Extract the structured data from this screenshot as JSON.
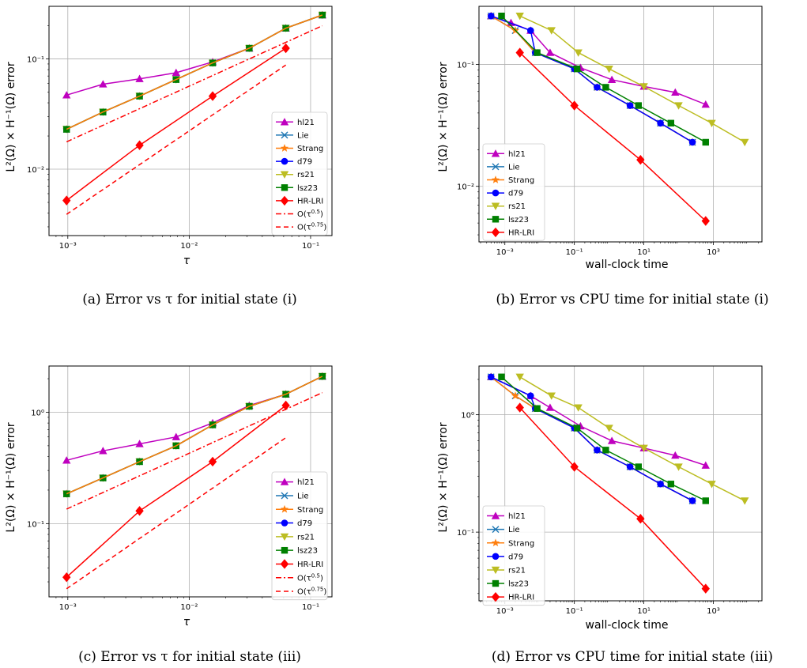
{
  "figures": [
    {
      "caption": "(a) Error vs τ for initial state (i)",
      "xlabel": "τ",
      "ylabel": "L²(Ω) × H⁻¹(Ω) error"
    },
    {
      "caption": "(b) Error vs CPU time for initial state (i)",
      "xlabel": "wall-clock time",
      "ylabel": "L²(Ω) × H⁻¹(Ω) error"
    },
    {
      "caption": "(c) Error vs τ for initial state (iii)",
      "xlabel": "τ",
      "ylabel": "L²(Ω) × H⁻¹(Ω) error"
    },
    {
      "caption": "(d) Error vs CPU time for initial state (iii)",
      "xlabel": "wall-clock time",
      "ylabel": "L²(Ω) × H⁻¹(Ω) error"
    }
  ],
  "chart_data": [
    {
      "type": "line",
      "xscale": "log",
      "yscale": "log",
      "xlim": [
        0.0007,
        0.15
      ],
      "ylim": [
        0.0025,
        0.3
      ],
      "xticks": [
        {
          "v": 0.001,
          "l": "10⁻³"
        },
        {
          "v": 0.01,
          "l": "10⁻²"
        },
        {
          "v": 0.1,
          "l": "10⁻¹"
        }
      ],
      "yticks": [
        {
          "v": 0.01,
          "l": "10⁻²"
        },
        {
          "v": 0.1,
          "l": "10⁻¹"
        }
      ],
      "grid": true,
      "legend": "lower-right",
      "series": [
        {
          "name": "hl21",
          "color": "#bf00bf",
          "marker": "triangle-up",
          "dash": "solid",
          "x": [
            0.000977,
            0.00195,
            0.0039,
            0.0078,
            0.0156,
            0.03125,
            0.0625,
            0.125
          ],
          "y": [
            0.047,
            0.059,
            0.066,
            0.075,
            0.094,
            0.125,
            0.19,
            0.25
          ]
        },
        {
          "name": "Lie",
          "color": "#1f77b4",
          "marker": "x",
          "dash": "solid",
          "x": [
            0.000977,
            0.00195,
            0.0039,
            0.0078,
            0.0156,
            0.03125,
            0.0625,
            0.125
          ],
          "y": [
            0.023,
            0.033,
            0.046,
            0.065,
            0.092,
            0.125,
            0.19,
            0.25
          ]
        },
        {
          "name": "Strang",
          "color": "#ff7f0e",
          "marker": "star",
          "dash": "solid",
          "x": [
            0.000977,
            0.00195,
            0.0039,
            0.0078,
            0.0156,
            0.03125,
            0.0625,
            0.125
          ],
          "y": [
            0.023,
            0.033,
            0.046,
            0.065,
            0.092,
            0.125,
            0.19,
            0.25
          ]
        },
        {
          "name": "d79",
          "color": "#0000ff",
          "marker": "circle",
          "dash": "solid",
          "x": [
            0.000977,
            0.00195,
            0.0039,
            0.0078,
            0.0156,
            0.03125,
            0.0625,
            0.125
          ],
          "y": [
            0.023,
            0.033,
            0.046,
            0.065,
            0.092,
            0.125,
            0.19,
            0.25
          ]
        },
        {
          "name": "rs21",
          "color": "#bcbd22",
          "marker": "triangle-down",
          "dash": "solid",
          "x": [
            0.000977,
            0.00195,
            0.0039,
            0.0078,
            0.0156,
            0.03125,
            0.0625,
            0.125
          ],
          "y": [
            0.023,
            0.033,
            0.046,
            0.065,
            0.092,
            0.125,
            0.19,
            0.25
          ]
        },
        {
          "name": "lsz23",
          "color": "#008000",
          "marker": "square",
          "dash": "solid",
          "x": [
            0.000977,
            0.00195,
            0.0039,
            0.0078,
            0.0156,
            0.03125,
            0.0625,
            0.125
          ],
          "y": [
            0.023,
            0.033,
            0.046,
            0.065,
            0.092,
            0.125,
            0.19,
            0.25
          ]
        },
        {
          "name": "Strang",
          "color": "#ff7f0e",
          "marker": "none",
          "dash": "solid",
          "legend": false,
          "x": [
            0.000977,
            0.00195,
            0.0039,
            0.0078,
            0.0156,
            0.03125,
            0.0625,
            0.125
          ],
          "y": [
            0.023,
            0.033,
            0.046,
            0.065,
            0.092,
            0.125,
            0.19,
            0.25
          ]
        },
        {
          "name": "HR-LRI",
          "color": "#ff0000",
          "marker": "diamond",
          "dash": "solid",
          "x": [
            0.000977,
            0.0039,
            0.0156,
            0.0625
          ],
          "y": [
            0.0052,
            0.0165,
            0.046,
            0.125
          ]
        },
        {
          "name": "O(τ^0.5)",
          "color": "#ff0000",
          "marker": "none",
          "dash": "dashdot",
          "x": [
            0.000977,
            0.125
          ],
          "y": [
            0.0177,
            0.2
          ]
        },
        {
          "name": "O(τ^0.75)",
          "color": "#ff0000",
          "marker": "none",
          "dash": "dashed",
          "x": [
            0.000977,
            0.0625
          ],
          "y": [
            0.0039,
            0.088
          ]
        }
      ]
    },
    {
      "type": "line",
      "xscale": "log",
      "yscale": "log",
      "xlim": [
        0.00018,
        25000
      ],
      "ylim": [
        0.0035,
        0.3
      ],
      "xticks": [
        {
          "v": 0.001,
          "l": "10⁻³"
        },
        {
          "v": 0.1,
          "l": "10⁻¹"
        },
        {
          "v": 10,
          "l": "10¹"
        },
        {
          "v": 1000,
          "l": "10³"
        }
      ],
      "yticks": [
        {
          "v": 0.01,
          "l": "10⁻²"
        },
        {
          "v": 0.1,
          "l": "10⁻¹"
        }
      ],
      "grid": true,
      "legend": "lower-left",
      "series": [
        {
          "name": "hl21",
          "color": "#bf00bf",
          "marker": "triangle-up",
          "dash": "solid",
          "x": [
            0.0004,
            0.0015,
            0.0055,
            0.02,
            0.15,
            1.2,
            10,
            80,
            600
          ],
          "y": [
            0.25,
            0.22,
            0.19,
            0.125,
            0.094,
            0.075,
            0.066,
            0.059,
            0.047
          ]
        },
        {
          "name": "Lie",
          "color": "#1f77b4",
          "marker": "x",
          "dash": "solid",
          "x": [
            0.0004,
            0.002,
            0.0075,
            0.1,
            0.45,
            4,
            30,
            250
          ],
          "y": [
            0.25,
            0.19,
            0.125,
            0.092,
            0.065,
            0.046,
            0.033,
            0.023
          ]
        },
        {
          "name": "Strang",
          "color": "#ff7f0e",
          "marker": "star",
          "dash": "solid",
          "x": [
            0.0004,
            0.002,
            0.0075,
            0.1,
            0.45,
            4,
            30,
            250
          ],
          "y": [
            0.25,
            0.19,
            0.125,
            0.092,
            0.065,
            0.046,
            0.033,
            0.023
          ]
        },
        {
          "name": "d79",
          "color": "#0000ff",
          "marker": "circle",
          "dash": "solid",
          "x": [
            0.0004,
            0.0055,
            0.0075,
            0.1,
            0.45,
            4,
            30,
            250
          ],
          "y": [
            0.25,
            0.19,
            0.125,
            0.092,
            0.065,
            0.046,
            0.033,
            0.023
          ]
        },
        {
          "name": "rs21",
          "color": "#bcbd22",
          "marker": "triangle-down",
          "dash": "solid",
          "x": [
            0.0027,
            0.022,
            0.13,
            1.0,
            10,
            100,
            900,
            8000
          ],
          "y": [
            0.25,
            0.19,
            0.125,
            0.092,
            0.066,
            0.046,
            0.033,
            0.023
          ]
        },
        {
          "name": "lsz23",
          "color": "#008000",
          "marker": "square",
          "dash": "solid",
          "x": [
            0.0008,
            0.0085,
            0.12,
            0.8,
            7,
            60,
            600
          ],
          "y": [
            0.25,
            0.125,
            0.092,
            0.065,
            0.046,
            0.033,
            0.023
          ]
        },
        {
          "name": "HR-LRI",
          "color": "#ff0000",
          "marker": "diamond",
          "dash": "solid",
          "x": [
            0.0027,
            0.1,
            8,
            600
          ],
          "y": [
            0.125,
            0.046,
            0.0165,
            0.0052
          ]
        }
      ]
    },
    {
      "type": "line",
      "xscale": "log",
      "yscale": "log",
      "xlim": [
        0.0007,
        0.15
      ],
      "ylim": [
        0.022,
        2.6
      ],
      "xticks": [
        {
          "v": 0.001,
          "l": "10⁻³"
        },
        {
          "v": 0.01,
          "l": "10⁻²"
        },
        {
          "v": 0.1,
          "l": "10⁻¹"
        }
      ],
      "yticks": [
        {
          "v": 0.1,
          "l": "10⁻¹"
        },
        {
          "v": 1,
          "l": "10⁰"
        }
      ],
      "grid": true,
      "legend": "lower-right",
      "series": [
        {
          "name": "hl21",
          "color": "#bf00bf",
          "marker": "triangle-up",
          "dash": "solid",
          "x": [
            0.000977,
            0.00195,
            0.0039,
            0.0078,
            0.0156,
            0.03125,
            0.0625,
            0.125
          ],
          "y": [
            0.37,
            0.45,
            0.52,
            0.6,
            0.8,
            1.15,
            1.45,
            2.1
          ]
        },
        {
          "name": "Lie",
          "color": "#1f77b4",
          "marker": "x",
          "dash": "solid",
          "x": [
            0.000977,
            0.00195,
            0.0039,
            0.0078,
            0.0156,
            0.03125,
            0.0625,
            0.125
          ],
          "y": [
            0.185,
            0.257,
            0.36,
            0.5,
            0.77,
            1.13,
            1.45,
            2.1
          ]
        },
        {
          "name": "Strang",
          "color": "#ff7f0e",
          "marker": "star",
          "dash": "solid",
          "x": [
            0.000977,
            0.00195,
            0.0039,
            0.0078,
            0.0156,
            0.03125,
            0.0625,
            0.125
          ],
          "y": [
            0.185,
            0.257,
            0.36,
            0.5,
            0.77,
            1.13,
            1.45,
            2.1
          ]
        },
        {
          "name": "d79",
          "color": "#0000ff",
          "marker": "circle",
          "dash": "solid",
          "x": [
            0.000977,
            0.00195,
            0.0039,
            0.0078,
            0.0156,
            0.03125,
            0.0625,
            0.125
          ],
          "y": [
            0.185,
            0.257,
            0.36,
            0.5,
            0.77,
            1.13,
            1.45,
            2.1
          ]
        },
        {
          "name": "rs21",
          "color": "#bcbd22",
          "marker": "triangle-down",
          "dash": "solid",
          "x": [
            0.000977,
            0.00195,
            0.0039,
            0.0078,
            0.0156,
            0.03125,
            0.0625,
            0.125
          ],
          "y": [
            0.185,
            0.257,
            0.36,
            0.5,
            0.77,
            1.13,
            1.45,
            2.1
          ]
        },
        {
          "name": "lsz23",
          "color": "#008000",
          "marker": "square",
          "dash": "solid",
          "x": [
            0.000977,
            0.00195,
            0.0039,
            0.0078,
            0.0156,
            0.03125,
            0.0625,
            0.125
          ],
          "y": [
            0.185,
            0.257,
            0.36,
            0.5,
            0.77,
            1.13,
            1.45,
            2.1
          ]
        },
        {
          "name": "Strang",
          "color": "#ff7f0e",
          "marker": "none",
          "dash": "solid",
          "legend": false,
          "x": [
            0.000977,
            0.00195,
            0.0039,
            0.0078,
            0.0156,
            0.03125,
            0.0625,
            0.125
          ],
          "y": [
            0.185,
            0.257,
            0.36,
            0.5,
            0.77,
            1.13,
            1.45,
            2.1
          ]
        },
        {
          "name": "HR-LRI",
          "color": "#ff0000",
          "marker": "diamond",
          "dash": "solid",
          "x": [
            0.000977,
            0.0039,
            0.0156,
            0.0625
          ],
          "y": [
            0.033,
            0.13,
            0.36,
            1.15
          ]
        },
        {
          "name": "O(τ^0.5)",
          "color": "#ff0000",
          "marker": "none",
          "dash": "dashdot",
          "x": [
            0.000977,
            0.125
          ],
          "y": [
            0.135,
            1.5
          ]
        },
        {
          "name": "O(τ^0.75)",
          "color": "#ff0000",
          "marker": "none",
          "dash": "dashed",
          "x": [
            0.000977,
            0.0625
          ],
          "y": [
            0.026,
            0.59
          ]
        }
      ]
    },
    {
      "type": "line",
      "xscale": "log",
      "yscale": "log",
      "xlim": [
        0.00018,
        25000
      ],
      "ylim": [
        0.026,
        2.6
      ],
      "xticks": [
        {
          "v": 0.001,
          "l": "10⁻³"
        },
        {
          "v": 0.1,
          "l": "10⁻¹"
        },
        {
          "v": 10,
          "l": "10¹"
        },
        {
          "v": 1000,
          "l": "10³"
        }
      ],
      "yticks": [
        {
          "v": 0.1,
          "l": "10⁻¹"
        },
        {
          "v": 1,
          "l": "10⁰"
        }
      ],
      "grid": true,
      "legend": "lower-left",
      "series": [
        {
          "name": "hl21",
          "color": "#bf00bf",
          "marker": "triangle-up",
          "dash": "solid",
          "x": [
            0.0004,
            0.0055,
            0.02,
            0.15,
            1.2,
            10,
            80,
            600
          ],
          "y": [
            2.1,
            1.45,
            1.15,
            0.8,
            0.6,
            0.52,
            0.45,
            0.37
          ]
        },
        {
          "name": "Lie",
          "color": "#1f77b4",
          "marker": "x",
          "dash": "solid",
          "x": [
            0.0004,
            0.002,
            0.0075,
            0.1,
            0.45,
            4,
            30,
            250
          ],
          "y": [
            2.1,
            1.45,
            1.13,
            0.77,
            0.5,
            0.36,
            0.257,
            0.185
          ]
        },
        {
          "name": "Strang",
          "color": "#ff7f0e",
          "marker": "star",
          "dash": "solid",
          "x": [
            0.0004,
            0.002,
            0.0075,
            0.1,
            0.45,
            4,
            30,
            250
          ],
          "y": [
            2.1,
            1.45,
            1.13,
            0.77,
            0.5,
            0.36,
            0.257,
            0.185
          ]
        },
        {
          "name": "d79",
          "color": "#0000ff",
          "marker": "circle",
          "dash": "solid",
          "x": [
            0.0004,
            0.0055,
            0.0075,
            0.1,
            0.45,
            4,
            30,
            250
          ],
          "y": [
            2.1,
            1.45,
            1.13,
            0.77,
            0.5,
            0.36,
            0.257,
            0.185
          ]
        },
        {
          "name": "rs21",
          "color": "#bcbd22",
          "marker": "triangle-down",
          "dash": "solid",
          "x": [
            0.0027,
            0.022,
            0.13,
            1.0,
            10,
            100,
            900,
            8000
          ],
          "y": [
            2.1,
            1.45,
            1.15,
            0.77,
            0.52,
            0.36,
            0.257,
            0.185
          ]
        },
        {
          "name": "lsz23",
          "color": "#008000",
          "marker": "square",
          "dash": "solid",
          "x": [
            0.0008,
            0.0085,
            0.12,
            0.8,
            7,
            60,
            600
          ],
          "y": [
            2.1,
            1.13,
            0.77,
            0.5,
            0.36,
            0.257,
            0.185
          ]
        },
        {
          "name": "HR-LRI",
          "color": "#ff0000",
          "marker": "diamond",
          "dash": "solid",
          "x": [
            0.0027,
            0.1,
            8,
            600
          ],
          "y": [
            1.15,
            0.36,
            0.13,
            0.033
          ]
        }
      ]
    }
  ]
}
